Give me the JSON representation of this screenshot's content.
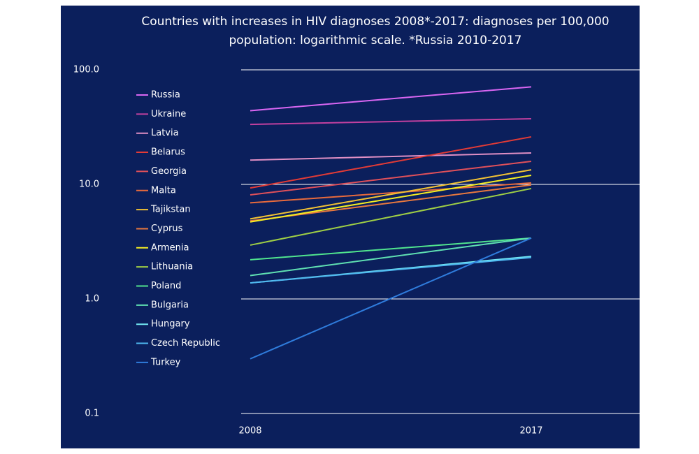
{
  "chart_data": {
    "type": "line",
    "title": "Countries with increases in HIV diagnoses 2008*-2017: diagnoses per 100,000 population: logarithmic scale. *Russia 2010-2017",
    "categories": [
      "2008",
      "2017"
    ],
    "log_scale": true,
    "grid": true,
    "legend": "left",
    "ylim": [
      0.1,
      100
    ],
    "yticks": [
      {
        "value": 0.1,
        "label": "0.1"
      },
      {
        "value": 1,
        "label": "1.0"
      },
      {
        "value": 10,
        "label": "10.0"
      },
      {
        "value": 100,
        "label": "100.0"
      }
    ],
    "series": [
      {
        "name": "Russia",
        "color": "#d966f2",
        "values": [
          44,
          71
        ]
      },
      {
        "name": "Ukraine",
        "color": "#c2409f",
        "values": [
          33.4,
          37.4
        ]
      },
      {
        "name": "Latvia",
        "color": "#e08fc4",
        "values": [
          16.3,
          18.8
        ]
      },
      {
        "name": "Belarus",
        "color": "#e33b36",
        "values": [
          9.3,
          26
        ]
      },
      {
        "name": "Georgia",
        "color": "#e0505a",
        "values": [
          8.1,
          15.9
        ]
      },
      {
        "name": "Malta",
        "color": "#e86a3c",
        "values": [
          6.9,
          10.3
        ]
      },
      {
        "name": "Tajikstan",
        "color": "#f2c234",
        "values": [
          5.0,
          13.4
        ]
      },
      {
        "name": "Cyprus",
        "color": "#e8783e",
        "values": [
          4.8,
          9.9
        ]
      },
      {
        "name": "Armenia",
        "color": "#f5ee22",
        "values": [
          4.7,
          12.0
        ]
      },
      {
        "name": "Lithuania",
        "color": "#9fcf45",
        "values": [
          2.95,
          9.2
        ]
      },
      {
        "name": "Poland",
        "color": "#50e58e",
        "values": [
          2.2,
          3.4
        ]
      },
      {
        "name": "Bulgaria",
        "color": "#5fe0b2",
        "values": [
          1.6,
          3.4
        ]
      },
      {
        "name": "Hungary",
        "color": "#72e8f2",
        "values": [
          1.38,
          2.35
        ]
      },
      {
        "name": "Czech Republic",
        "color": "#4fb8f0",
        "values": [
          1.38,
          2.3
        ]
      },
      {
        "name": "Turkey",
        "color": "#2f7cdc",
        "values": [
          0.3,
          3.4
        ]
      }
    ]
  }
}
